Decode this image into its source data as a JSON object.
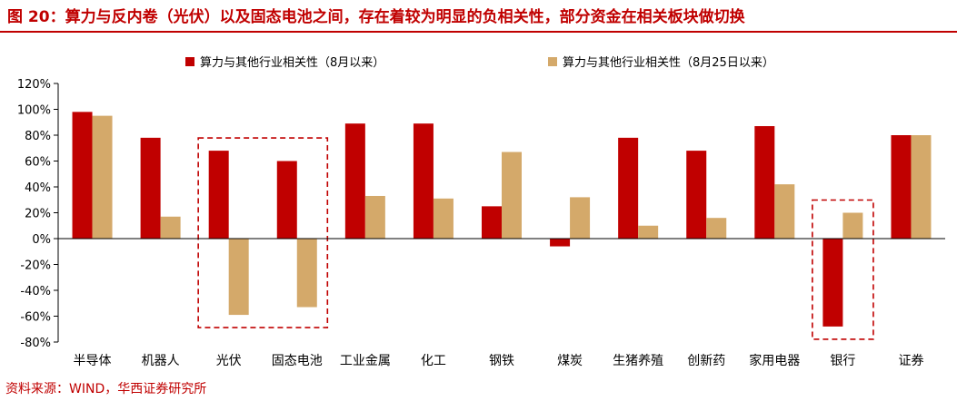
{
  "title": "图 20：算力与反内卷（光伏）以及固态电池之间，存在着较为明显的负相关性，部分资金在相关板块做切换",
  "source": "资料来源：WIND，华西证券研究所",
  "colors": {
    "series1": "#c00000",
    "series2": "#d4a96a",
    "title": "#c00000",
    "box": "#c00000"
  },
  "chart_data": {
    "type": "bar",
    "title": "",
    "xlabel": "",
    "ylabel": "",
    "ylim": [
      -80,
      120
    ],
    "yticks": [
      "120%",
      "100%",
      "80%",
      "60%",
      "40%",
      "20%",
      "0%",
      "-20%",
      "-40%",
      "-60%",
      "-80%"
    ],
    "ytick_values": [
      120,
      100,
      80,
      60,
      40,
      20,
      0,
      -20,
      -40,
      -60,
      -80
    ],
    "grid": false,
    "legend_position": "top",
    "categories": [
      "半导体",
      "机器人",
      "光伏",
      "固态电池",
      "工业金属",
      "化工",
      "钢铁",
      "煤炭",
      "生猪养殖",
      "创新药",
      "家用电器",
      "银行",
      "证券"
    ],
    "series": [
      {
        "name": "算力与其他行业相关性（8月以来）",
        "values": [
          98,
          78,
          68,
          60,
          89,
          89,
          25,
          -6,
          78,
          68,
          87,
          -68,
          80
        ]
      },
      {
        "name": "算力与其他行业相关性（8月25日以来）",
        "values": [
          95,
          17,
          -59,
          -53,
          33,
          31,
          67,
          32,
          10,
          16,
          42,
          20,
          80
        ]
      }
    ],
    "highlight_boxes": [
      {
        "categories": [
          "光伏",
          "固态电池"
        ],
        "style": "dashed"
      },
      {
        "categories": [
          "银行"
        ],
        "style": "dashed"
      }
    ]
  }
}
